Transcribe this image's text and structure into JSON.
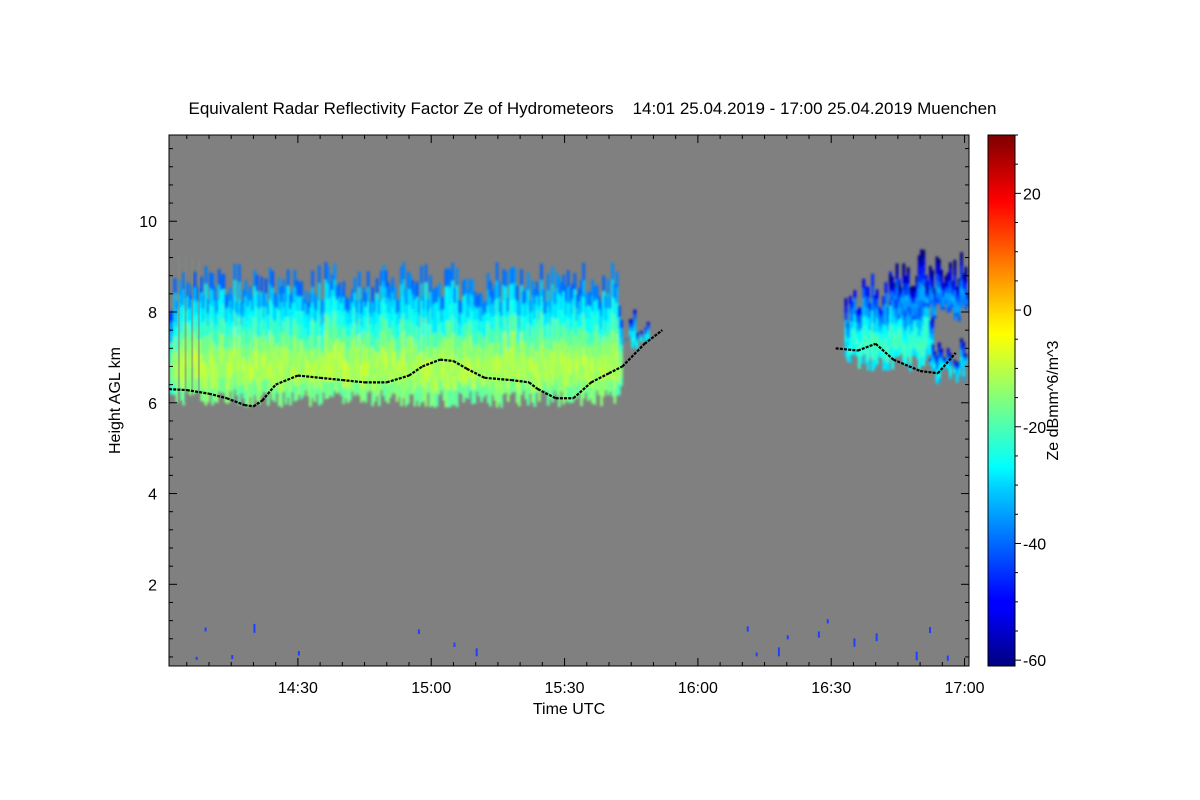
{
  "chart_data": {
    "type": "heatmap",
    "title": "Equivalent Radar Reflectivity Factor Ze of Hydrometeors",
    "time_range": "14:01 25.04.2019 - 17:00 25.04.2019",
    "location": "Muenchen",
    "xlabel": "Time UTC",
    "ylabel": "Height AGL km",
    "colorbar_label": "Ze dBmm^6/m^3",
    "x_ticks": [
      "14:30",
      "15:00",
      "15:30",
      "16:00",
      "16:30",
      "17:00"
    ],
    "x_tick_minutes": [
      30,
      60,
      90,
      120,
      150,
      180
    ],
    "xlim_minutes": [
      1,
      181
    ],
    "y_ticks": [
      2,
      4,
      6,
      8,
      10
    ],
    "ylim": [
      0.2,
      11.9
    ],
    "colorbar_ticks": [
      -60,
      -40,
      -20,
      0,
      20
    ],
    "colorbar_range": [
      -61,
      30
    ],
    "background_color": "#808080",
    "cloud_segments": [
      {
        "start": 1,
        "end": 103,
        "base_km": 6.0,
        "top_km": 9.1,
        "peak_dbz": -8
      },
      {
        "start": 103,
        "end": 110,
        "base_km": 7.2,
        "top_km": 8.1,
        "peak_dbz": -22
      },
      {
        "start": 153,
        "end": 173,
        "base_km": 6.8,
        "top_km": 8.9,
        "peak_dbz": -18
      },
      {
        "start": 163,
        "end": 181,
        "base_km": 7.9,
        "top_km": 9.4,
        "peak_dbz": -32
      },
      {
        "start": 171,
        "end": 181,
        "base_km": 6.5,
        "top_km": 7.5,
        "peak_dbz": -24
      }
    ],
    "cloud_base_line_km": [
      [
        1,
        6.3
      ],
      [
        5,
        6.28
      ],
      [
        10,
        6.2
      ],
      [
        14,
        6.1
      ],
      [
        18,
        5.95
      ],
      [
        20,
        5.92
      ],
      [
        22,
        6.05
      ],
      [
        25,
        6.4
      ],
      [
        30,
        6.6
      ],
      [
        35,
        6.55
      ],
      [
        40,
        6.5
      ],
      [
        45,
        6.45
      ],
      [
        50,
        6.45
      ],
      [
        55,
        6.6
      ],
      [
        58,
        6.8
      ],
      [
        62,
        6.95
      ],
      [
        65,
        6.92
      ],
      [
        68,
        6.75
      ],
      [
        72,
        6.55
      ],
      [
        78,
        6.5
      ],
      [
        82,
        6.45
      ],
      [
        84,
        6.3
      ],
      [
        88,
        6.1
      ],
      [
        92,
        6.1
      ],
      [
        96,
        6.45
      ],
      [
        100,
        6.65
      ],
      [
        103,
        6.8
      ],
      [
        108,
        7.3
      ],
      [
        112,
        7.6
      ],
      [
        151,
        7.2
      ],
      [
        156,
        7.15
      ],
      [
        160,
        7.3
      ],
      [
        164,
        6.95
      ],
      [
        170,
        6.7
      ],
      [
        174,
        6.65
      ],
      [
        178,
        7.1
      ]
    ]
  }
}
